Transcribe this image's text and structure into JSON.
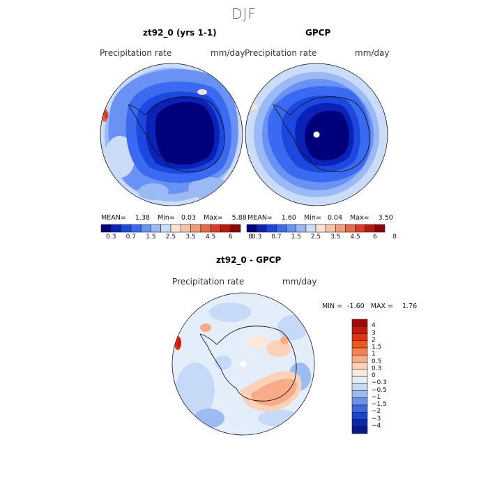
{
  "title": "DJF",
  "panels": [
    {
      "title": "zt92_0 (yrs 1-1)",
      "variable": "Precipitation rate",
      "units": "mm/day",
      "mean_label": "MEAN=",
      "mean": "1.38",
      "min_label": "Min=",
      "min": "0.03",
      "max_label": "Max=",
      "max": "5.88"
    },
    {
      "title": "GPCP",
      "variable": "Precipitation rate",
      "units": "mm/day",
      "mean_label": "MEAN=",
      "mean": "1.60",
      "min_label": "Min=",
      "min": "0.04",
      "max_label": "Max=",
      "max": "3.50"
    }
  ],
  "colorbar_abs": {
    "colors": [
      "#00007a",
      "#0a22b8",
      "#1c48e0",
      "#3a6af2",
      "#6a92f5",
      "#9bb9f5",
      "#cadcf7",
      "#fbe4d6",
      "#f7c3a6",
      "#f29c7c",
      "#e86a48",
      "#dc3a22",
      "#bb1a0a",
      "#8a0505"
    ],
    "ticks": [
      "0.3",
      "0.7",
      "1.5",
      "2.5",
      "3.5",
      "4.5",
      "6",
      "8"
    ]
  },
  "diff_panel": {
    "title": "zt92_0 - GPCP",
    "variable": "Precipitation rate",
    "units": "mm/day",
    "min_label": "MIN =",
    "min": "-1.60",
    "max_label": "MAX =",
    "max": "1.76"
  },
  "colorbar_diff": {
    "colors": [
      "#a20a0a",
      "#c81a0a",
      "#e0340e",
      "#f0561e",
      "#f7824c",
      "#f8ab86",
      "#fbd2b8",
      "#fbe9dc",
      "#e4eefb",
      "#c6d9f6",
      "#9cbbf2",
      "#6a93ec",
      "#3d69e2",
      "#1b44d0",
      "#0a28aa",
      "#06188a"
    ],
    "ticks": [
      "4",
      "3",
      "2",
      "1.5",
      "1",
      "0.5",
      "0.3",
      "0",
      "−0.3",
      "−0.5",
      "−1",
      "−1.5",
      "−2",
      "−3",
      "−4"
    ]
  }
}
